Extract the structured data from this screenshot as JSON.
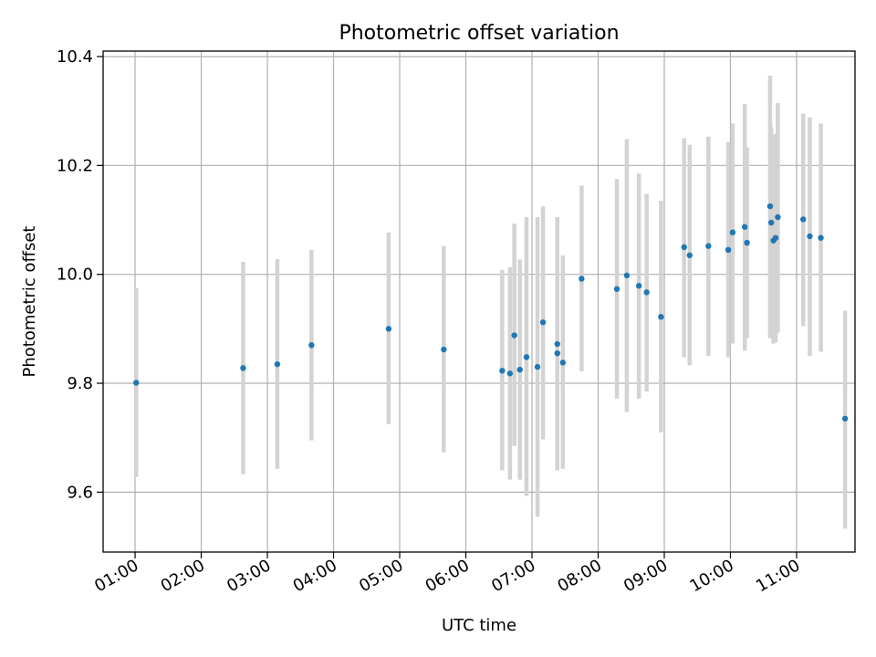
{
  "chart_data": {
    "type": "scatter",
    "title": "Photometric offset variation",
    "xlabel": "UTC time",
    "ylabel": "Photometric offset",
    "x_unit": "UTC time (HH:MM)",
    "xlim": [
      "00:31",
      "11:53"
    ],
    "ylim": [
      9.49,
      10.41
    ],
    "grid": true,
    "x_ticks": [
      "01:00",
      "02:00",
      "03:00",
      "04:00",
      "05:00",
      "06:00",
      "07:00",
      "08:00",
      "09:00",
      "10:00",
      "11:00"
    ],
    "y_ticks": [
      9.6,
      9.8,
      10.0,
      10.2,
      10.4
    ],
    "y_tick_labels": [
      "9.6",
      "9.8",
      "10.0",
      "10.2",
      "10.4"
    ],
    "colors": {
      "points": "#1f77b4",
      "error_bars": "#d3d3d3",
      "grid": "#b0b0b0"
    },
    "series": [
      {
        "points": [
          {
            "x": "01:01",
            "y": 9.801,
            "ylo": 9.628,
            "yhi": 9.975
          },
          {
            "x": "02:38",
            "y": 9.828,
            "ylo": 9.633,
            "yhi": 10.023
          },
          {
            "x": "03:09",
            "y": 9.835,
            "ylo": 9.643,
            "yhi": 10.028
          },
          {
            "x": "03:40",
            "y": 9.87,
            "ylo": 9.695,
            "yhi": 10.045
          },
          {
            "x": "04:50",
            "y": 9.9,
            "ylo": 9.725,
            "yhi": 10.077
          },
          {
            "x": "05:40",
            "y": 9.862,
            "ylo": 9.673,
            "yhi": 10.052
          },
          {
            "x": "06:33",
            "y": 9.823,
            "ylo": 9.64,
            "yhi": 10.008
          },
          {
            "x": "06:40",
            "y": 9.818,
            "ylo": 9.623,
            "yhi": 10.013
          },
          {
            "x": "06:44",
            "y": 9.888,
            "ylo": 9.685,
            "yhi": 10.093
          },
          {
            "x": "06:49",
            "y": 9.825,
            "ylo": 9.623,
            "yhi": 10.027
          },
          {
            "x": "06:55",
            "y": 9.848,
            "ylo": 9.593,
            "yhi": 10.105
          },
          {
            "x": "07:05",
            "y": 9.83,
            "ylo": 9.555,
            "yhi": 10.105
          },
          {
            "x": "07:10",
            "y": 9.912,
            "ylo": 9.697,
            "yhi": 10.125
          },
          {
            "x": "07:23",
            "y": 9.872,
            "ylo": 9.64,
            "yhi": 10.105
          },
          {
            "x": "07:23",
            "y": 9.855,
            "ylo": 9.68,
            "yhi": 10.03
          },
          {
            "x": "07:28",
            "y": 9.838,
            "ylo": 9.643,
            "yhi": 10.035
          },
          {
            "x": "07:45",
            "y": 9.992,
            "ylo": 9.822,
            "yhi": 10.163
          },
          {
            "x": "08:17",
            "y": 9.973,
            "ylo": 9.772,
            "yhi": 10.175
          },
          {
            "x": "08:26",
            "y": 9.998,
            "ylo": 9.747,
            "yhi": 10.248
          },
          {
            "x": "08:37",
            "y": 9.979,
            "ylo": 9.772,
            "yhi": 10.185
          },
          {
            "x": "08:44",
            "y": 9.967,
            "ylo": 9.785,
            "yhi": 10.148
          },
          {
            "x": "08:57",
            "y": 9.922,
            "ylo": 9.71,
            "yhi": 10.135
          },
          {
            "x": "09:18",
            "y": 10.05,
            "ylo": 9.848,
            "yhi": 10.25
          },
          {
            "x": "09:23",
            "y": 10.035,
            "ylo": 9.833,
            "yhi": 10.238
          },
          {
            "x": "09:40",
            "y": 10.052,
            "ylo": 9.85,
            "yhi": 10.253
          },
          {
            "x": "09:58",
            "y": 10.045,
            "ylo": 9.848,
            "yhi": 10.243
          },
          {
            "x": "10:02",
            "y": 10.077,
            "ylo": 9.873,
            "yhi": 10.277
          },
          {
            "x": "10:13",
            "y": 10.087,
            "ylo": 9.86,
            "yhi": 10.313
          },
          {
            "x": "10:15",
            "y": 10.058,
            "ylo": 9.883,
            "yhi": 10.233
          },
          {
            "x": "10:36",
            "y": 10.125,
            "ylo": 9.883,
            "yhi": 10.365
          },
          {
            "x": "10:37",
            "y": 10.095,
            "ylo": 9.92,
            "yhi": 10.27
          },
          {
            "x": "10:39",
            "y": 10.062,
            "ylo": 9.873,
            "yhi": 10.25
          },
          {
            "x": "10:41",
            "y": 10.067,
            "ylo": 9.875,
            "yhi": 10.258
          },
          {
            "x": "10:43",
            "y": 10.105,
            "ylo": 9.893,
            "yhi": 10.315
          },
          {
            "x": "11:06",
            "y": 10.101,
            "ylo": 9.905,
            "yhi": 10.295
          },
          {
            "x": "11:12",
            "y": 10.07,
            "ylo": 9.85,
            "yhi": 10.288
          },
          {
            "x": "11:22",
            "y": 10.067,
            "ylo": 9.858,
            "yhi": 10.277
          },
          {
            "x": "11:44",
            "y": 9.735,
            "ylo": 9.533,
            "yhi": 9.933
          }
        ]
      }
    ]
  }
}
